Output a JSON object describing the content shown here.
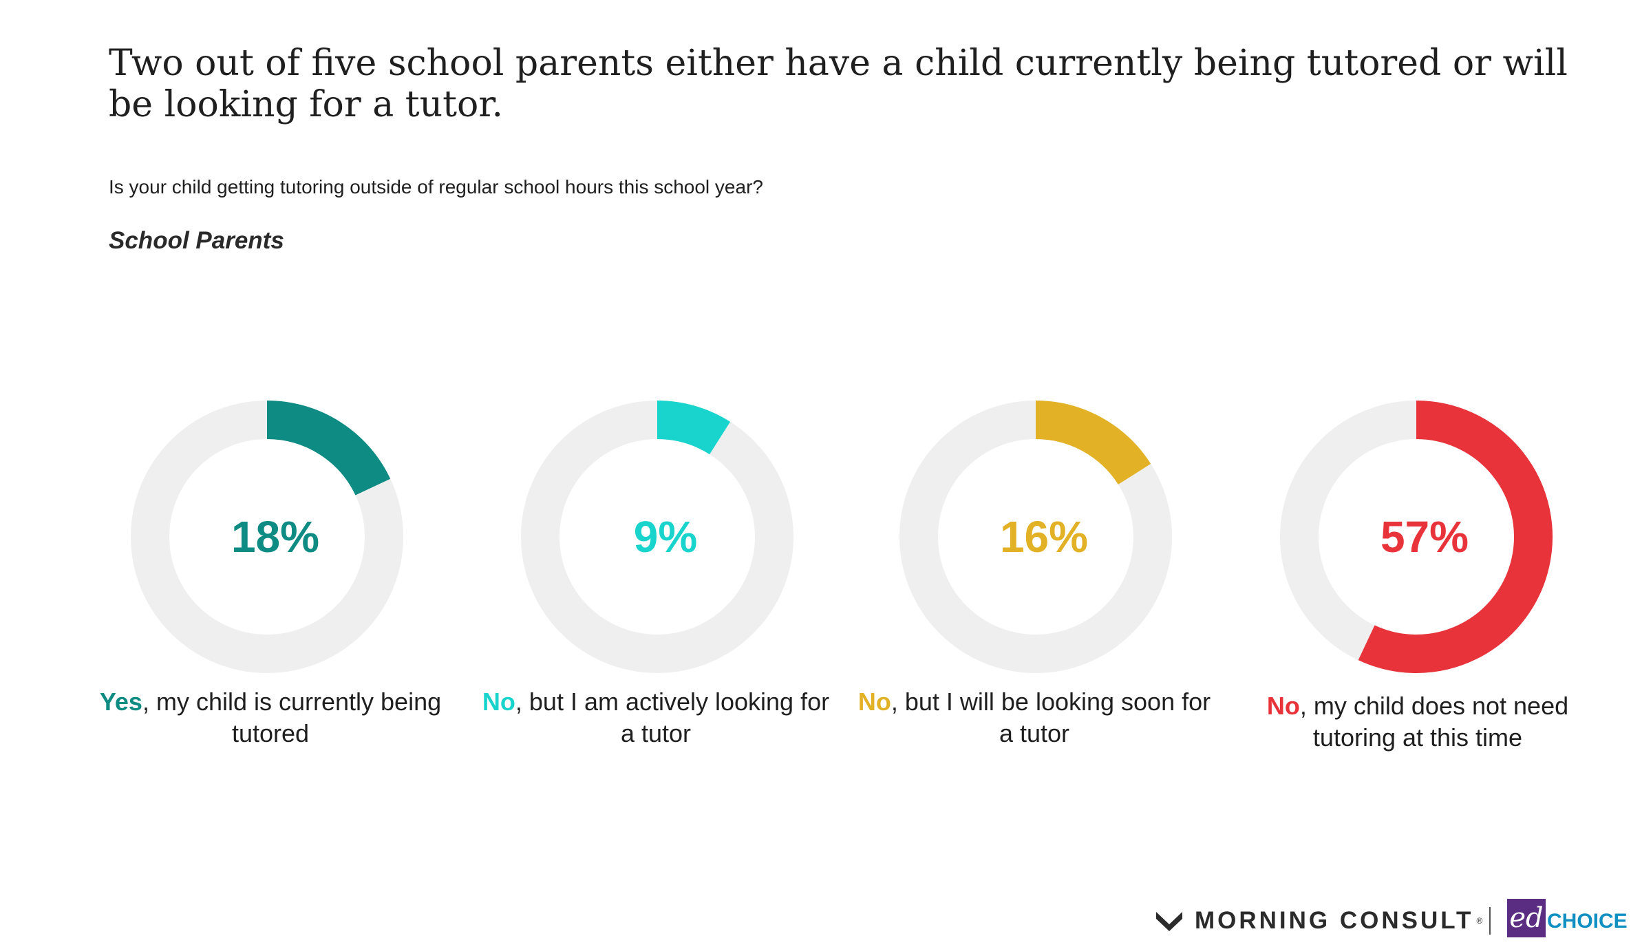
{
  "title": "Two out of five school parents either have a child currently being tutored or will be looking for a tutor.",
  "question": "Is your child getting tutoring outside of regular school hours this school year?",
  "group_label": "School Parents",
  "colors": {
    "track": "#efefef",
    "teal": "#0e8b82",
    "cyan": "#18d4cc",
    "gold": "#e2b125",
    "red": "#e8333a"
  },
  "chart_data": {
    "type": "donut",
    "title": "Two out of five school parents either have a child currently being tutored or will be looking for a tutor.",
    "subtitle": "Is your child getting tutoring outside of regular school hours this school year?",
    "unit": "%",
    "items": [
      {
        "value": 18,
        "label": "18%",
        "lead": "Yes",
        "caption_rest": ", my child is currently being tutored",
        "color": "#0e8b82"
      },
      {
        "value": 9,
        "label": "9%",
        "lead": "No",
        "caption_rest": ", but I am actively looking for a tutor",
        "color": "#18d4cc"
      },
      {
        "value": 16,
        "label": "16%",
        "lead": "No",
        "caption_rest": ", but I will be looking soon for a tutor",
        "color": "#e2b125"
      },
      {
        "value": 57,
        "label": "57%",
        "lead": "No",
        "caption_rest": ", my child does not need tutoring at this time",
        "color": "#e8333a"
      }
    ]
  },
  "footer": {
    "brand1": "MORNING CONSULT",
    "brand1_mark": "®",
    "brand2_ed": "ed",
    "brand2_choice": "CHOICE"
  }
}
